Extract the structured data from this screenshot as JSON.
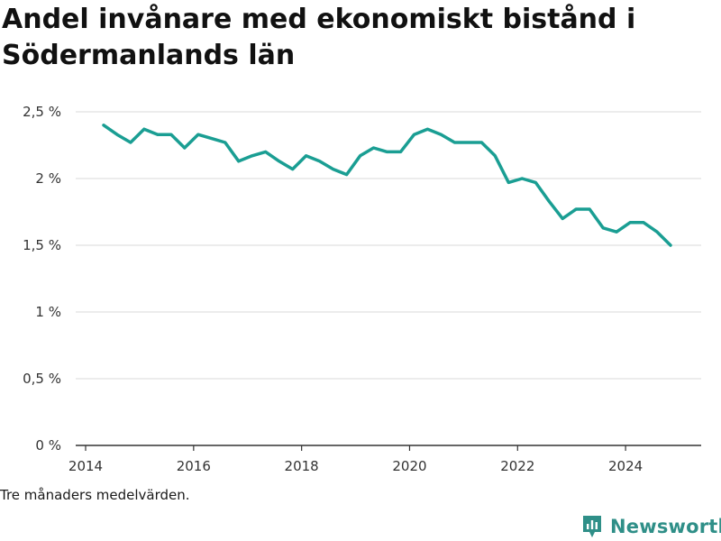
{
  "title": "Andel invånare med ekonomiskt bistånd i Södermanlands län",
  "note": "Tre månaders medelvärden.",
  "brand": {
    "name": "Newsworthy",
    "color": "#2f8f88",
    "icon": "newsworthy-logo-icon"
  },
  "colors": {
    "line": "#1a9e93",
    "grid": "#d9d9d9",
    "axis": "#333333"
  },
  "chart_data": {
    "type": "line",
    "title": "Andel invånare med ekonomiskt bistånd i Södermanlands län",
    "xlabel": "",
    "ylabel": "",
    "x_ticks": [
      "2014",
      "2016",
      "2018",
      "2020",
      "2022",
      "2024"
    ],
    "y_ticks": [
      "0 %",
      "0,5 %",
      "1 %",
      "1,5 %",
      "2 %",
      "2,5 %"
    ],
    "ylim": [
      0,
      2.5
    ],
    "grid": true,
    "series": [
      {
        "name": "",
        "points": [
          [
            "2014-05",
            2.4
          ],
          [
            "2014-08",
            2.33
          ],
          [
            "2014-11",
            2.27
          ],
          [
            "2015-02",
            2.37
          ],
          [
            "2015-05",
            2.33
          ],
          [
            "2015-08",
            2.33
          ],
          [
            "2015-11",
            2.23
          ],
          [
            "2016-02",
            2.33
          ],
          [
            "2016-05",
            2.3
          ],
          [
            "2016-08",
            2.27
          ],
          [
            "2016-11",
            2.13
          ],
          [
            "2017-02",
            2.17
          ],
          [
            "2017-05",
            2.2
          ],
          [
            "2017-08",
            2.13
          ],
          [
            "2017-11",
            2.07
          ],
          [
            "2018-02",
            2.17
          ],
          [
            "2018-05",
            2.13
          ],
          [
            "2018-08",
            2.07
          ],
          [
            "2018-11",
            2.03
          ],
          [
            "2019-02",
            2.17
          ],
          [
            "2019-05",
            2.23
          ],
          [
            "2019-08",
            2.2
          ],
          [
            "2019-11",
            2.2
          ],
          [
            "2020-02",
            2.33
          ],
          [
            "2020-05",
            2.37
          ],
          [
            "2020-08",
            2.33
          ],
          [
            "2020-11",
            2.27
          ],
          [
            "2021-02",
            2.27
          ],
          [
            "2021-05",
            2.27
          ],
          [
            "2021-08",
            2.17
          ],
          [
            "2021-11",
            1.97
          ],
          [
            "2022-02",
            2.0
          ],
          [
            "2022-05",
            1.97
          ],
          [
            "2022-08",
            1.83
          ],
          [
            "2022-11",
            1.7
          ],
          [
            "2023-02",
            1.77
          ],
          [
            "2023-05",
            1.77
          ],
          [
            "2023-08",
            1.63
          ],
          [
            "2023-11",
            1.6
          ],
          [
            "2024-02",
            1.67
          ],
          [
            "2024-05",
            1.67
          ],
          [
            "2024-08",
            1.6
          ],
          [
            "2024-11",
            1.5
          ]
        ]
      }
    ]
  }
}
